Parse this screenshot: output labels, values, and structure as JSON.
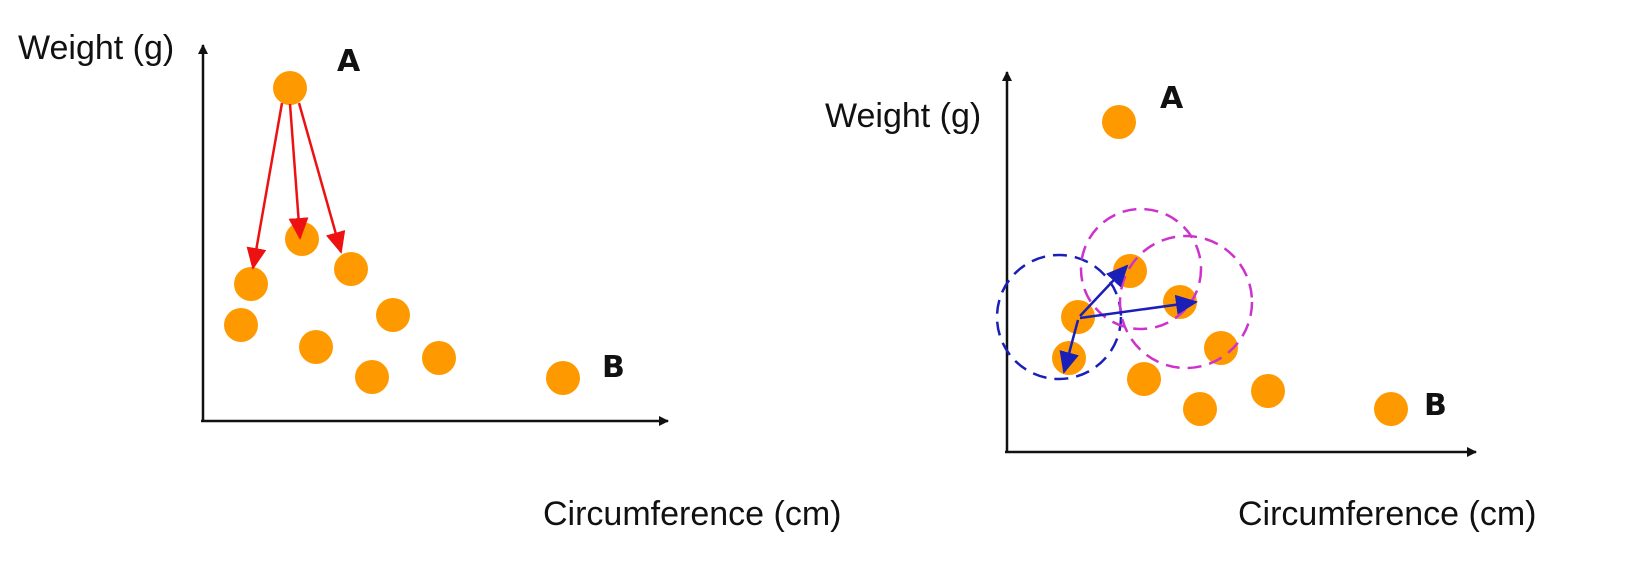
{
  "colors": {
    "point": "#FF9900",
    "axis": "#111111",
    "left_arrows": "#EE1111",
    "right_arrows": "#1A1FB8",
    "blue_circle": "#1A1FB8",
    "magenta_circle": "#CC33CC"
  },
  "left_panel": {
    "ylabel": "Weight (g)",
    "xlabel": "Circumference (cm)",
    "label_a": "A",
    "label_b": "B"
  },
  "right_panel": {
    "ylabel": "Weight (g)",
    "xlabel": "Circumference (cm)",
    "label_a": "A",
    "label_b": "B"
  }
}
